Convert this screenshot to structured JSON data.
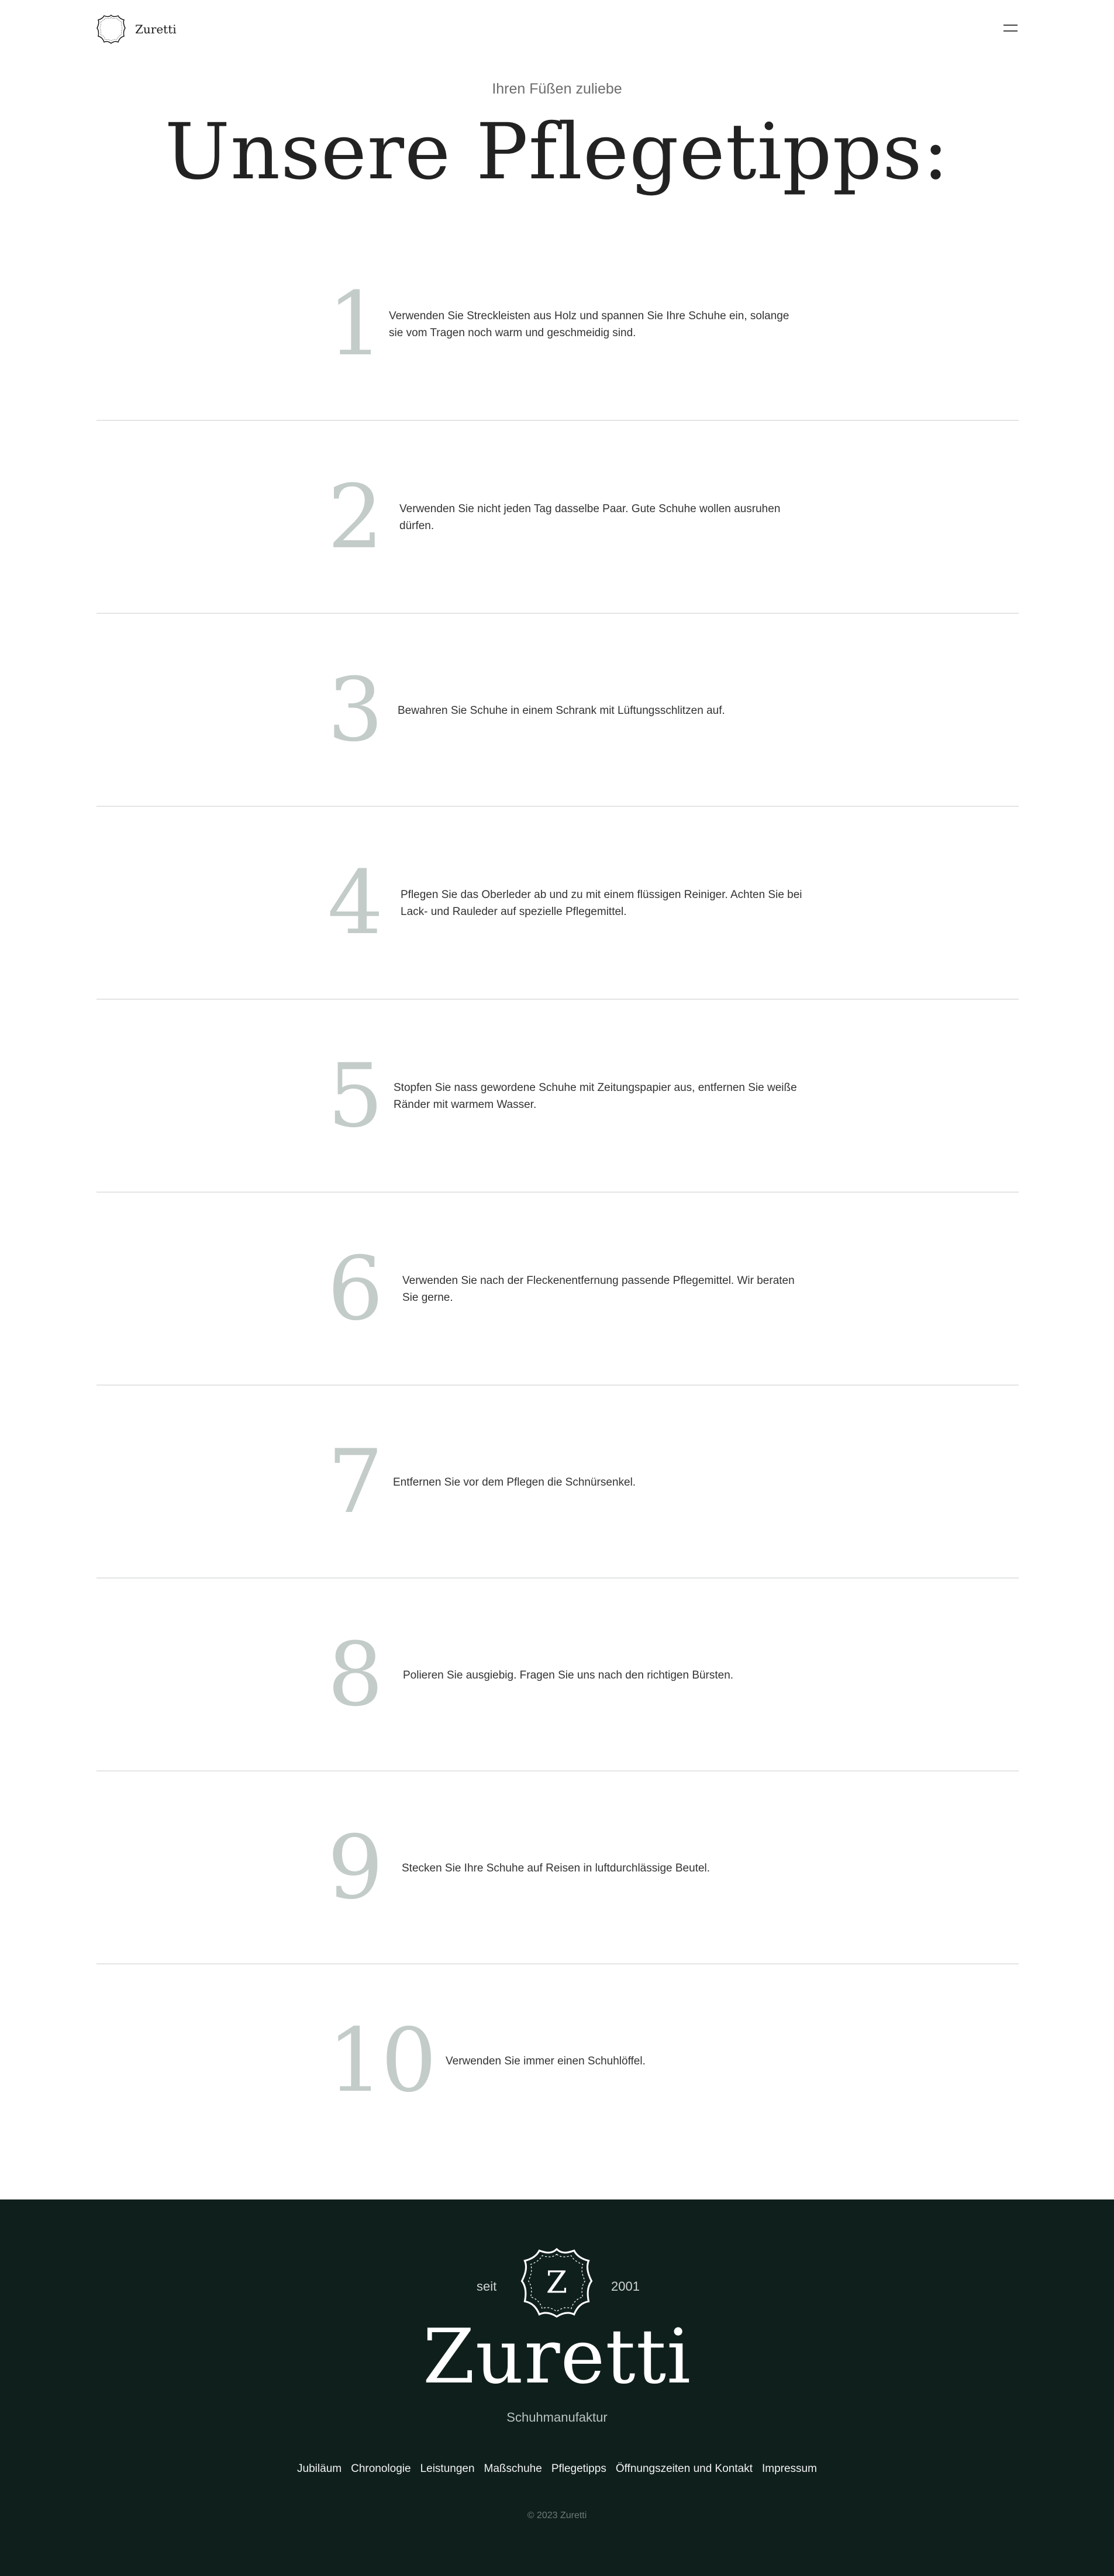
{
  "header": {
    "logo_letter": "Z",
    "logo_text": "Zuretti",
    "menu_icon": "hamburger-icon"
  },
  "hero": {
    "eyebrow": "Ihren Füßen zuliebe",
    "title": "Unsere Pflegetipps:"
  },
  "tips": [
    {
      "number": "1",
      "text": "Verwenden Sie Streckleisten aus Holz und spannen Sie Ihre Schuhe ein, solange sie vom Tragen noch warm und geschmeidig sind."
    },
    {
      "number": "2",
      "text": "Verwenden Sie nicht jeden Tag dasselbe Paar. Gute Schuhe wollen ausruhen dürfen."
    },
    {
      "number": "3",
      "text": "Bewahren Sie Schuhe in einem Schrank mit Lüftungsschlitzen auf."
    },
    {
      "number": "4",
      "text": "Pflegen Sie das Oberleder ab und zu mit einem flüssigen Reiniger. Achten Sie bei Lack- und Rauleder auf spezielle Pflegemittel."
    },
    {
      "number": "5",
      "text": "Stopfen Sie nass gewordene Schuhe mit Zeitungspapier aus, entfernen Sie weiße Ränder mit warmem Wasser."
    },
    {
      "number": "6",
      "text": "Verwenden Sie nach der Fleckenentfernung passende Pflegemittel. Wir beraten Sie gerne."
    },
    {
      "number": "7",
      "text": "Entfernen Sie vor dem Pflegen die Schnürsenkel."
    },
    {
      "number": "8",
      "text": "Polieren Sie ausgiebig. Fragen Sie uns nach den richtigen Bürsten."
    },
    {
      "number": "9",
      "text": "Stecken Sie Ihre Schuhe auf Reisen in luftdurchlässige Beutel."
    },
    {
      "number": "10",
      "text": "Verwenden Sie immer einen Schuhlöffel."
    }
  ],
  "footer": {
    "since_label": "seit",
    "since_year": "2001",
    "badge_letter": "Z",
    "brand": "Zuretti",
    "tagline": "Schuhmanufaktur",
    "nav": [
      "Jubiläum",
      "Chronologie",
      "Leistungen",
      "Maßschuhe",
      "Pflegetipps",
      "Öffnungszeiten und Kontakt",
      "Impressum"
    ],
    "copyright": "© 2023 Zuretti"
  },
  "colors": {
    "footer_bg": "#0f1f1c",
    "tip_number": "#c3ccc8",
    "divider": "#e3e5e4"
  }
}
